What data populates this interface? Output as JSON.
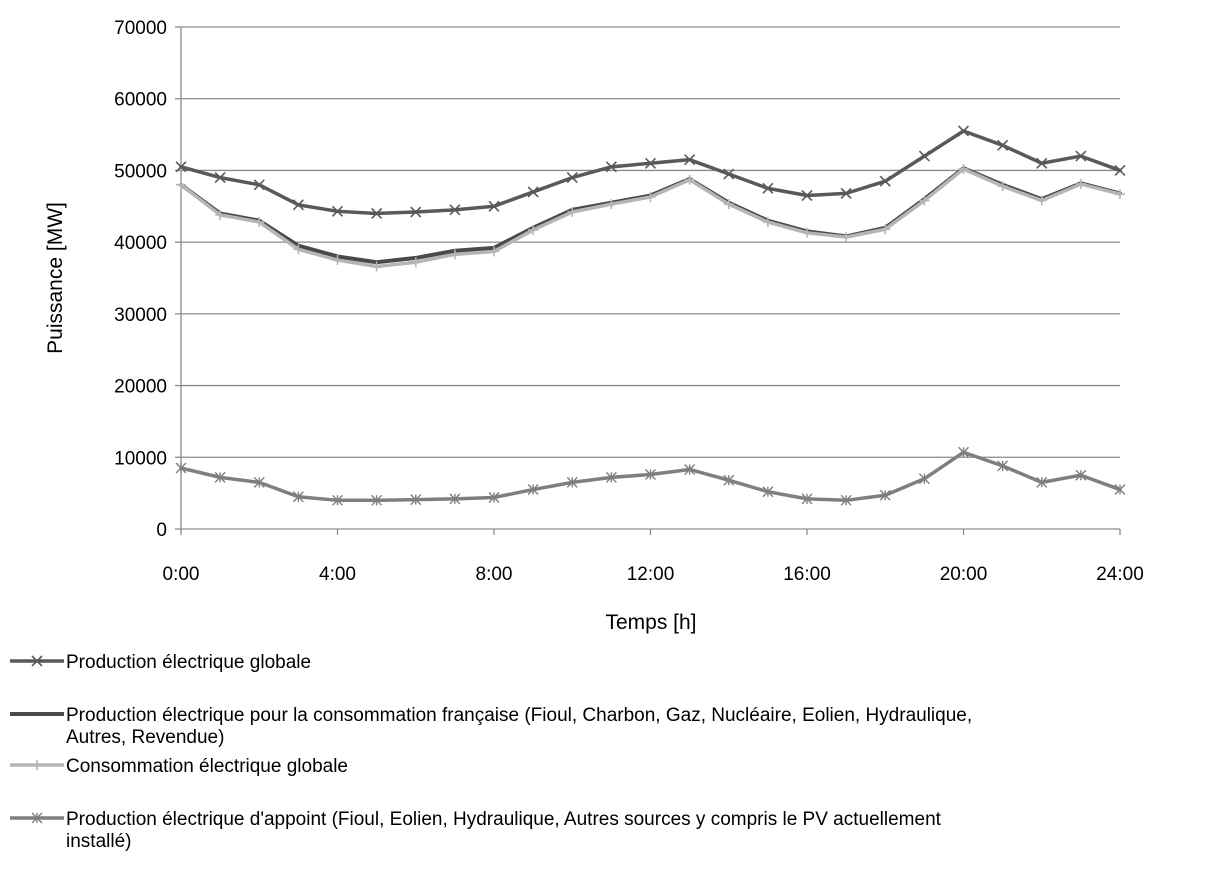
{
  "chart_data": {
    "type": "line",
    "xlabel": "Temps [h]",
    "ylabel": "Puissance [MW]",
    "ylim": [
      0,
      70000
    ],
    "xlim": [
      0,
      24
    ],
    "y_ticks": [
      0,
      10000,
      20000,
      30000,
      40000,
      50000,
      60000,
      70000
    ],
    "x_tick_labels": [
      "0:00",
      "4:00",
      "8:00",
      "12:00",
      "16:00",
      "20:00",
      "24:00"
    ],
    "grid": "horizontal",
    "legend_placement": "bottom",
    "series": [
      {
        "name": "Production électrique globale",
        "marker": "x",
        "color": "#595959",
        "x": [
          0,
          1,
          2,
          3,
          4,
          5,
          6,
          7,
          8,
          9,
          10,
          11,
          12,
          13,
          14,
          15,
          16,
          17,
          18,
          19,
          20,
          21,
          22,
          23,
          24
        ],
        "values": [
          50500,
          49000,
          48000,
          45200,
          44300,
          44000,
          44200,
          44500,
          45000,
          47000,
          49000,
          50500,
          51000,
          51500,
          49500,
          47500,
          46500,
          46800,
          48500,
          52000,
          55500,
          53500,
          51000,
          52000,
          50000
        ]
      },
      {
        "name": "Production électrique pour la consommation française (Fioul, Charbon, Gaz, Nucléaire, Eolien, Hydraulique, Autres, Revendue)",
        "marker": "none",
        "color": "#4a4a4a",
        "x": [
          0,
          1,
          2,
          3,
          4,
          5,
          6,
          7,
          8,
          9,
          10,
          11,
          12,
          13,
          14,
          15,
          16,
          17,
          18,
          19,
          20,
          21,
          22,
          23,
          24
        ],
        "values": [
          48000,
          44000,
          43000,
          39500,
          38000,
          37200,
          37800,
          38800,
          39200,
          42000,
          44500,
          45500,
          46500,
          48800,
          45500,
          43000,
          41500,
          40800,
          42000,
          46000,
          50300,
          48000,
          46000,
          48200,
          46800
        ]
      },
      {
        "name": "Consommation électrique globale",
        "marker": "+",
        "color": "#b5b5b5",
        "x": [
          0,
          1,
          2,
          3,
          4,
          5,
          6,
          7,
          8,
          9,
          10,
          11,
          12,
          13,
          14,
          15,
          16,
          17,
          18,
          19,
          20,
          21,
          22,
          23,
          24
        ],
        "values": [
          48000,
          43800,
          42800,
          39000,
          37500,
          36600,
          37200,
          38300,
          38700,
          41700,
          44200,
          45300,
          46300,
          48700,
          45300,
          42800,
          41300,
          40700,
          41800,
          45800,
          50200,
          47800,
          45800,
          48100,
          46700
        ]
      },
      {
        "name": "Production électrique d'appoint (Fioul, Eolien, Hydraulique, Autres sources y compris le PV actuellement installé)",
        "marker": "*",
        "color": "#7f7f7f",
        "x": [
          0,
          1,
          2,
          3,
          4,
          5,
          6,
          7,
          8,
          9,
          10,
          11,
          12,
          13,
          14,
          15,
          16,
          17,
          18,
          19,
          20,
          21,
          22,
          23,
          24
        ],
        "values": [
          8500,
          7200,
          6500,
          4500,
          4000,
          4000,
          4100,
          4200,
          4400,
          5500,
          6500,
          7200,
          7600,
          8300,
          6800,
          5200,
          4200,
          4000,
          4700,
          7000,
          10700,
          8800,
          6500,
          7500,
          5500
        ]
      }
    ]
  }
}
